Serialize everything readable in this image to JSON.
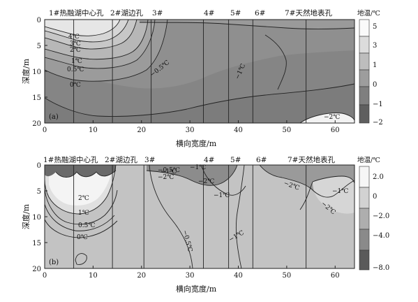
{
  "panels": [
    {
      "panel_label": "(a)",
      "xlabel": "横向宽度/m",
      "ylabel": "深度/m",
      "colorbar_title": "地温/℃",
      "colorbar_ticks": [
        "5",
        "3",
        "1",
        "0",
        "−1",
        "−2"
      ],
      "x_ticks": [
        "0",
        "10",
        "20",
        "30",
        "40",
        "50",
        "60"
      ],
      "y_ticks": [
        "0",
        "5",
        "10",
        "15",
        "20"
      ],
      "boreholes": [
        {
          "label": "1#热融湖中心孔",
          "x": 6
        },
        {
          "label": "2#湖边孔",
          "x": 14
        },
        {
          "label": "3#",
          "x": 22
        },
        {
          "label": "4#",
          "x": 32.8
        },
        {
          "label": "5#",
          "x": 38
        },
        {
          "label": "6#",
          "x": 43
        },
        {
          "label": "7#天然地表孔",
          "x": 54
        }
      ],
      "isotherm_labels": [
        "4℃",
        "3℃",
        "2℃",
        "1℃",
        "0.5℃",
        "0℃",
        "−0.5℃",
        "−1℃",
        "−2℃"
      ]
    },
    {
      "panel_label": "(b)",
      "xlabel": "横向宽度/m",
      "ylabel": "深度/m",
      "colorbar_title": "地温/℃",
      "colorbar_ticks": [
        "2.0",
        "0",
        "−2.0",
        "−4.0",
        "−8.0"
      ],
      "x_ticks": [
        "0",
        "10",
        "20",
        "30",
        "40",
        "50",
        "60"
      ],
      "y_ticks": [
        "0",
        "5",
        "10",
        "15",
        "20"
      ],
      "boreholes": [
        {
          "label": "1#热融湖中心孔",
          "x": 6
        },
        {
          "label": "2#湖边孔",
          "x": 14
        },
        {
          "label": "3#",
          "x": 20.5
        },
        {
          "label": "4#",
          "x": 32.8
        },
        {
          "label": "5#",
          "x": 38
        },
        {
          "label": "6#",
          "x": 43
        },
        {
          "label": "7#天然地表孔",
          "x": 54
        }
      ],
      "isotherm_labels": [
        "2℃",
        "1℃",
        "0.5℃",
        "0℃",
        "−0.5℃",
        "−1℃",
        "−2℃",
        "−1℃",
        "−2℃",
        "−1℃",
        "−0.5℃",
        "−1℃",
        "−2℃",
        "−1℃",
        "−2℃"
      ]
    }
  ],
  "chart_data": [
    {
      "type": "heatmap",
      "title": "",
      "panel": "(a)",
      "xlabel": "横向宽度/m",
      "ylabel": "深度/m",
      "xlim": [
        0,
        64
      ],
      "ylim": [
        20,
        0
      ],
      "colorbar_label": "地温/℃",
      "colorbar_levels": [
        5,
        3,
        1,
        0,
        -1,
        -2
      ],
      "isotherms": [
        4,
        3,
        2,
        1,
        0.5,
        0,
        -0.5,
        -1,
        -2
      ],
      "boreholes_x_m": [
        6,
        14,
        22,
        32.8,
        38,
        43,
        54
      ]
    },
    {
      "type": "heatmap",
      "title": "",
      "panel": "(b)",
      "xlabel": "横向宽度/m",
      "ylabel": "深度/m",
      "xlim": [
        0,
        64
      ],
      "ylim": [
        20,
        0
      ],
      "colorbar_label": "地温/℃",
      "colorbar_levels": [
        2.0,
        0,
        -2.0,
        -4.0,
        -8.0
      ],
      "isotherms": [
        2,
        1,
        0.5,
        0,
        -0.5,
        -1,
        -2
      ],
      "boreholes_x_m": [
        6,
        14,
        20.5,
        32.8,
        38,
        43,
        54
      ]
    }
  ]
}
